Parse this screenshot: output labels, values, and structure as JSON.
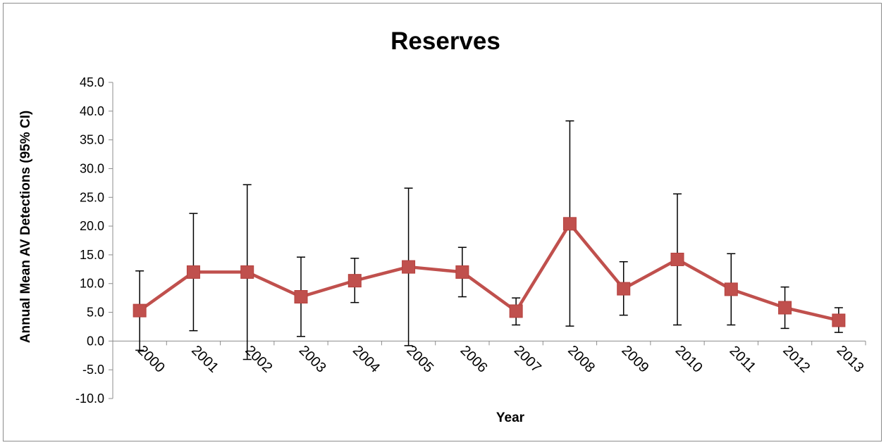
{
  "chart_data": {
    "type": "line",
    "title": "Reserves",
    "xlabel": "Year",
    "ylabel": "Annual Mean AV Detections (95% CI)",
    "ylim": [
      -10,
      45
    ],
    "yticks": [
      "45.0",
      "40.0",
      "35.0",
      "30.0",
      "25.0",
      "20.0",
      "15.0",
      "10.0",
      "5.0",
      "0.0",
      "-5.0",
      "-10.0"
    ],
    "categories": [
      "2000",
      "2001",
      "2002",
      "2003",
      "2004",
      "2005",
      "2006",
      "2007",
      "2008",
      "2009",
      "2010",
      "2011",
      "2012",
      "2013"
    ],
    "series": [
      {
        "values": [
          5.3,
          12.0,
          12.0,
          7.7,
          10.5,
          12.9,
          12.0,
          5.2,
          20.4,
          9.1,
          14.2,
          9.0,
          5.8,
          3.6
        ],
        "ci_upper": [
          12.2,
          22.2,
          27.2,
          14.6,
          14.4,
          26.6,
          16.3,
          7.5,
          38.3,
          13.8,
          25.6,
          15.2,
          9.4,
          5.8
        ],
        "ci_lower": [
          -1.6,
          1.8,
          -3.2,
          0.8,
          6.7,
          -0.8,
          7.7,
          2.8,
          2.6,
          4.5,
          2.8,
          2.8,
          2.2,
          1.5
        ],
        "color": "#c0504d"
      }
    ],
    "grid": false,
    "legend": "none"
  }
}
